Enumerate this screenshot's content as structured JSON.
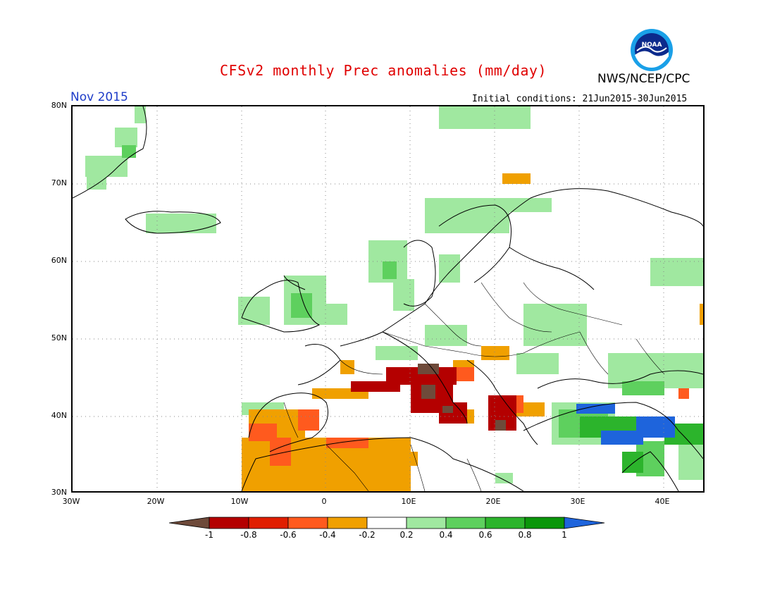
{
  "header": {
    "title": "CFSv2 monthly Prec anomalies (mm/day)",
    "month": "Nov 2015",
    "agency": "NWS/NCEP/CPC",
    "initial_conditions": "Initial conditions: 21Jun2015-30Jun2015",
    "logo_text": "NOAA"
  },
  "map": {
    "lon_range": [
      -30,
      45
    ],
    "lat_range": [
      30,
      80
    ],
    "lat_ticks": [
      "30N",
      "40N",
      "50N",
      "60N",
      "70N",
      "80N"
    ],
    "lon_ticks": [
      "30W",
      "20W",
      "10W",
      "0",
      "10E",
      "20E",
      "30E",
      "40E"
    ],
    "grid": "dotted"
  },
  "legend": {
    "labels": [
      "-1",
      "-0.8",
      "-0.6",
      "-0.4",
      "-0.2",
      "0.2",
      "0.4",
      "0.6",
      "0.8",
      "1"
    ],
    "colors": [
      "#6e4a3a",
      "#b40000",
      "#e01e00",
      "#ff5a1e",
      "#f0a000",
      "#ffffff",
      "#a0e8a0",
      "#5ed05e",
      "#2cb42c",
      "#0a960a",
      "#1e64dc"
    ]
  },
  "colors": {
    "title": "#e00000",
    "month": "#1e3cc8",
    "dry_strong": "#b40000",
    "dry": "#f0a000",
    "wet": "#a0e8a0",
    "wet_strong": "#0a960a",
    "very_wet": "#1e64dc"
  }
}
